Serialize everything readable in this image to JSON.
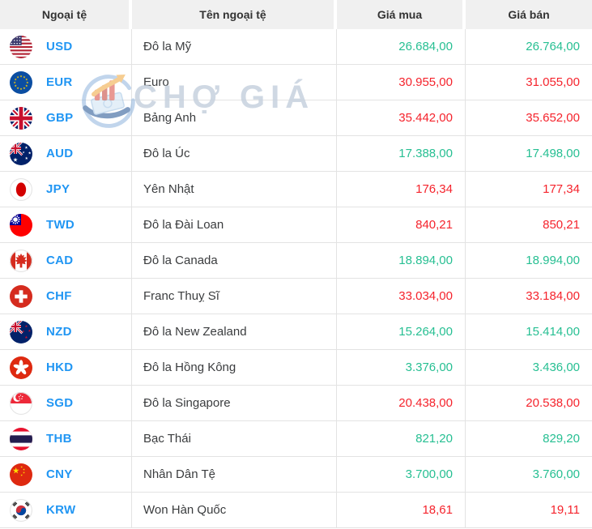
{
  "header": {
    "currency": "Ngoại tệ",
    "name": "Tên ngoại tệ",
    "buy": "Giá mua",
    "sell": "Giá bán"
  },
  "watermark": {
    "text": "CHỢ GIÁ",
    "logo_icon": "chogia-logo-icon"
  },
  "colors": {
    "price_up": "#26bf92",
    "price_down": "#f5232c",
    "currency_code": "#2196f3",
    "header_bg": "#f0f0f0"
  },
  "rows": [
    {
      "code": "USD",
      "flag": "usa-flag-icon",
      "name": "Đô la Mỹ",
      "buy": "26.684,00",
      "sell": "26.764,00",
      "trend": "up"
    },
    {
      "code": "EUR",
      "flag": "eu-flag-icon",
      "name": "Euro",
      "buy": "30.955,00",
      "sell": "31.055,00",
      "trend": "down"
    },
    {
      "code": "GBP",
      "flag": "uk-flag-icon",
      "name": "Bảng Anh",
      "buy": "35.442,00",
      "sell": "35.652,00",
      "trend": "down"
    },
    {
      "code": "AUD",
      "flag": "australia-flag-icon",
      "name": "Đô la Úc",
      "buy": "17.388,00",
      "sell": "17.498,00",
      "trend": "up"
    },
    {
      "code": "JPY",
      "flag": "japan-flag-icon",
      "name": "Yên Nhật",
      "buy": "176,34",
      "sell": "177,34",
      "trend": "down"
    },
    {
      "code": "TWD",
      "flag": "taiwan-flag-icon",
      "name": "Đô la Đài Loan",
      "buy": "840,21",
      "sell": "850,21",
      "trend": "down"
    },
    {
      "code": "CAD",
      "flag": "canada-flag-icon",
      "name": "Đô la Canada",
      "buy": "18.894,00",
      "sell": "18.994,00",
      "trend": "up"
    },
    {
      "code": "CHF",
      "flag": "switzerland-flag-icon",
      "name": "Franc Thuỵ Sĩ",
      "buy": "33.034,00",
      "sell": "33.184,00",
      "trend": "down"
    },
    {
      "code": "NZD",
      "flag": "new-zealand-flag-icon",
      "name": "Đô la New Zealand",
      "buy": "15.264,00",
      "sell": "15.414,00",
      "trend": "up"
    },
    {
      "code": "HKD",
      "flag": "hong-kong-flag-icon",
      "name": "Đô la Hồng Kông",
      "buy": "3.376,00",
      "sell": "3.436,00",
      "trend": "up"
    },
    {
      "code": "SGD",
      "flag": "singapore-flag-icon",
      "name": "Đô la Singapore",
      "buy": "20.438,00",
      "sell": "20.538,00",
      "trend": "down"
    },
    {
      "code": "THB",
      "flag": "thailand-flag-icon",
      "name": "Bạc Thái",
      "buy": "821,20",
      "sell": "829,20",
      "trend": "up"
    },
    {
      "code": "CNY",
      "flag": "china-flag-icon",
      "name": "Nhân Dân Tệ",
      "buy": "3.700,00",
      "sell": "3.760,00",
      "trend": "up"
    },
    {
      "code": "KRW",
      "flag": "south-korea-flag-icon",
      "name": "Won Hàn Quốc",
      "buy": "18,61",
      "sell": "19,11",
      "trend": "down"
    }
  ]
}
